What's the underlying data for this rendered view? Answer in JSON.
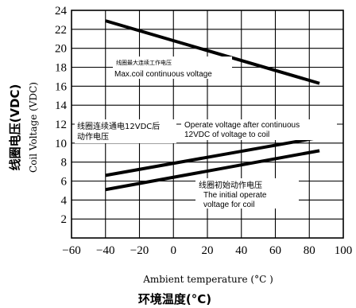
{
  "chart_data": {
    "type": "line",
    "xlabel": "Ambient temperature (°C )",
    "xlabel_cn": "环境温度(°C)",
    "ylabel": "Coil Voltage (VDC)",
    "ylabel_cn": "线圈电压(VDC)",
    "xlim": [
      -60,
      100
    ],
    "ylim": [
      0,
      24
    ],
    "x_ticks": [
      -60,
      -40,
      -20,
      0,
      20,
      40,
      60,
      80,
      100
    ],
    "y_ticks": [
      2,
      4,
      6,
      8,
      10,
      12,
      14,
      16,
      18,
      20,
      22,
      24
    ],
    "grid": true,
    "series": [
      {
        "name": "Max.coil continuous voltage",
        "x": [
          -40,
          86
        ],
        "values": [
          22.9,
          16.3
        ]
      },
      {
        "name": "Operate voltage after continuous 12VDC of voltage to coil",
        "x": [
          -40,
          86
        ],
        "values": [
          6.6,
          10.6
        ]
      },
      {
        "name": "The initial operate voltage for coil",
        "x": [
          -40,
          86
        ],
        "values": [
          5.1,
          9.2
        ]
      }
    ],
    "annotations": {
      "max": {
        "cn": "线圈最大连续工作电压",
        "en": "Max.coil continuous voltage"
      },
      "operate": {
        "cn": [
          "线圈连续通电12VDC后",
          "动作电压"
        ],
        "en": [
          "Operate voltage after continuous",
          "12VDC of voltage to coil"
        ]
      },
      "initial": {
        "cn": "线圈初始动作电压",
        "en": [
          "The initial operate",
          "voltage for coil"
        ]
      }
    }
  }
}
